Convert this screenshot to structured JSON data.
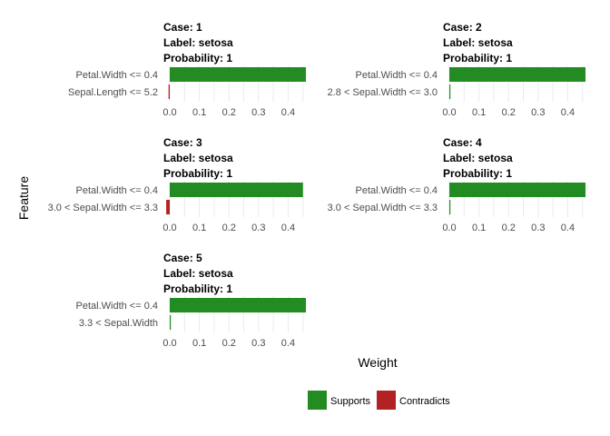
{
  "chart_data": {
    "type": "bar",
    "orientation": "horizontal",
    "xlabel": "Weight",
    "ylabel": "Feature",
    "xlim": [
      0,
      0.46
    ],
    "x_ticks": [
      "0.0",
      "0.1",
      "0.2",
      "0.3",
      "0.4"
    ],
    "legend": {
      "placement": "bottom",
      "entries": [
        {
          "label": "Supports",
          "color": "#228B22"
        },
        {
          "label": "Contradicts",
          "color": "#B22222"
        }
      ]
    },
    "facets": [
      {
        "case": "Case: 1",
        "label": "Label: setosa",
        "probability": "Probability: 1",
        "features": [
          "Petal.Width <= 0.4",
          "Sepal.Length <= 5.2"
        ],
        "values": [
          0.46,
          -0.004
        ]
      },
      {
        "case": "Case: 2",
        "label": "Label: setosa",
        "probability": "Probability: 1",
        "features": [
          "Petal.Width <= 0.4",
          "2.8 < Sepal.Width <= 3.0"
        ],
        "values": [
          0.46,
          0.0
        ]
      },
      {
        "case": "Case: 3",
        "label": "Label: setosa",
        "probability": "Probability: 1",
        "features": [
          "Petal.Width <= 0.4",
          "3.0 < Sepal.Width <= 3.3"
        ],
        "values": [
          0.45,
          -0.012
        ]
      },
      {
        "case": "Case: 4",
        "label": "Label: setosa",
        "probability": "Probability: 1",
        "features": [
          "Petal.Width <= 0.4",
          "3.0 < Sepal.Width <= 3.3"
        ],
        "values": [
          0.46,
          0.002
        ]
      },
      {
        "case": "Case: 5",
        "label": "Label: setosa",
        "probability": "Probability: 1",
        "features": [
          "Petal.Width <= 0.4",
          "3.3 < Sepal.Width"
        ],
        "values": [
          0.46,
          0.002
        ]
      }
    ]
  }
}
